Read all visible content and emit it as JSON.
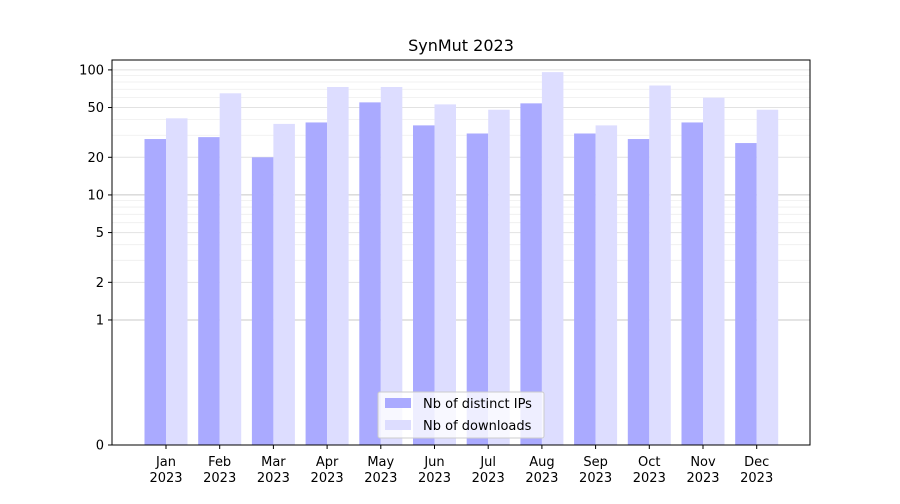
{
  "chart_data": {
    "type": "bar",
    "title": "SynMut 2023",
    "xlabel": "",
    "ylabel": "",
    "y_scale": "symlog",
    "ylim": [
      0,
      120
    ],
    "y_ticks": [
      0,
      1,
      2,
      5,
      10,
      20,
      50,
      100
    ],
    "y_tick_labels": [
      "0",
      "1",
      "2",
      "5",
      "10",
      "20",
      "50",
      "100"
    ],
    "categories": [
      "Jan\n2023",
      "Feb\n2023",
      "Mar\n2023",
      "Apr\n2023",
      "May\n2023",
      "Jun\n2023",
      "Jul\n2023",
      "Aug\n2023",
      "Sep\n2023",
      "Oct\n2023",
      "Nov\n2023",
      "Dec\n2023"
    ],
    "series": [
      {
        "name": "Nb of distinct IPs",
        "color": "#aaaaff",
        "values": [
          28,
          29,
          20,
          38,
          55,
          36,
          31,
          54,
          31,
          28,
          38,
          26
        ]
      },
      {
        "name": "Nb of downloads",
        "color": "#ddddff",
        "values": [
          41,
          65,
          37,
          73,
          73,
          53,
          48,
          96,
          36,
          75,
          60,
          48
        ]
      }
    ],
    "grid": true,
    "legend_position": "bottom-center"
  }
}
